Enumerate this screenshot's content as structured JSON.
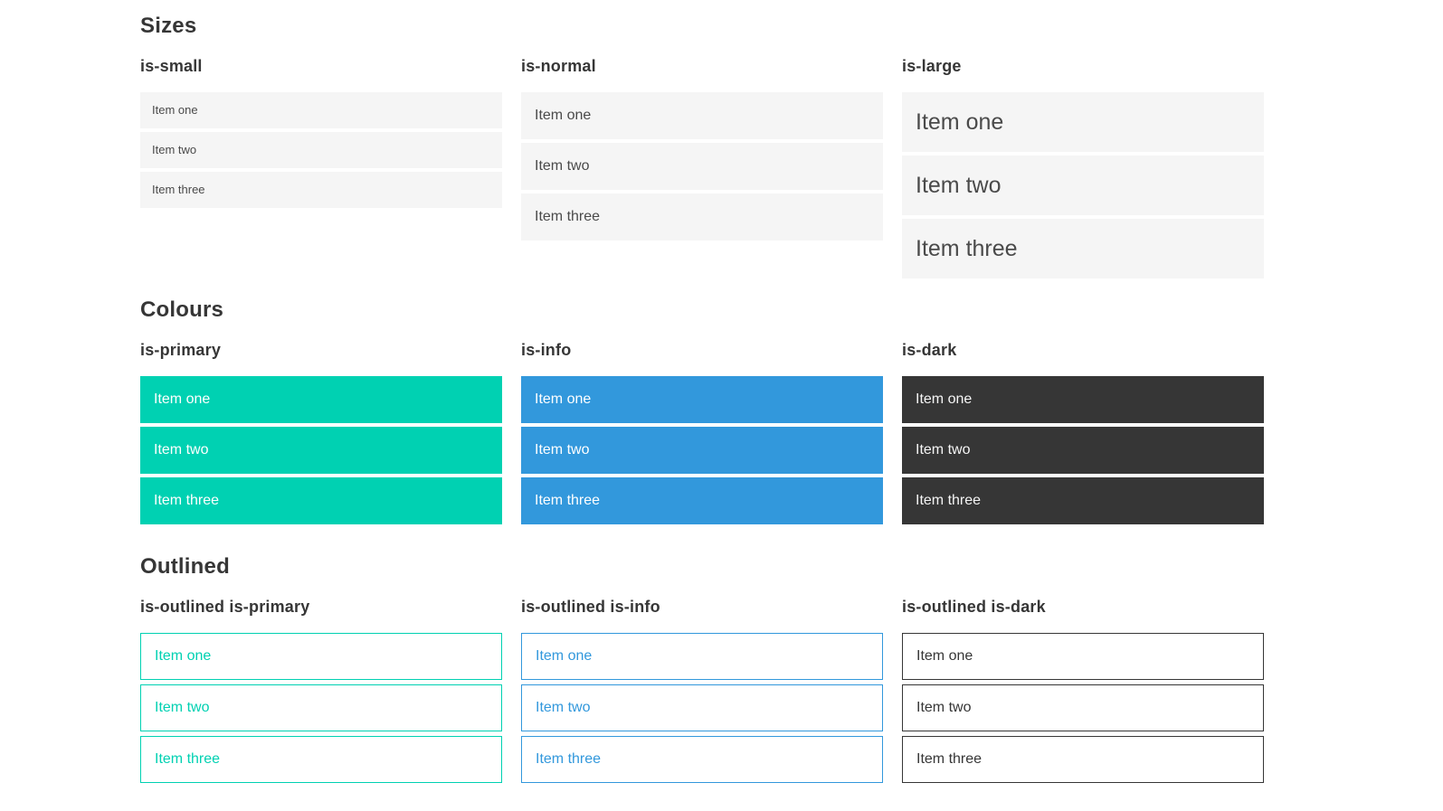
{
  "colors": {
    "primary": "#00d1b2",
    "info": "#3298dc",
    "dark": "#363636",
    "item_bg": "#f5f5f5",
    "item_text": "#4a4a4a",
    "heading_text": "#363636"
  },
  "sections": [
    {
      "title": "Sizes",
      "groups": [
        {
          "heading": "is-small",
          "items": [
            "Item one",
            "Item two",
            "Item three"
          ]
        },
        {
          "heading": "is-normal",
          "items": [
            "Item one",
            "Item two",
            "Item three"
          ]
        },
        {
          "heading": "is-large",
          "items": [
            "Item one",
            "Item two",
            "Item three"
          ]
        }
      ]
    },
    {
      "title": "Colours",
      "groups": [
        {
          "heading": "is-primary",
          "items": [
            "Item one",
            "Item two",
            "Item three"
          ]
        },
        {
          "heading": "is-info",
          "items": [
            "Item one",
            "Item two",
            "Item three"
          ]
        },
        {
          "heading": "is-dark",
          "items": [
            "Item one",
            "Item two",
            "Item three"
          ]
        }
      ]
    },
    {
      "title": "Outlined",
      "groups": [
        {
          "heading": "is-outlined is-primary",
          "items": [
            "Item one",
            "Item two",
            "Item three"
          ]
        },
        {
          "heading": "is-outlined is-info",
          "items": [
            "Item one",
            "Item two",
            "Item three"
          ]
        },
        {
          "heading": "is-outlined is-dark",
          "items": [
            "Item one",
            "Item two",
            "Item three"
          ]
        }
      ]
    }
  ]
}
